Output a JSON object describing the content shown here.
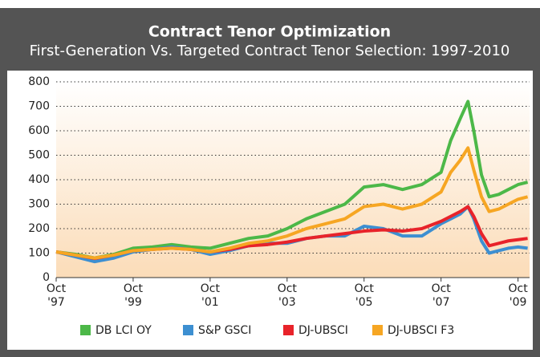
{
  "chart_data": {
    "type": "line",
    "title": "Contract Tenor Optimization",
    "subtitle": "First-Generation Vs. Targeted Contract Tenor Selection: 1997-2010",
    "x": [
      1997.75,
      1998.25,
      1998.75,
      1999.25,
      1999.75,
      2000.25,
      2000.75,
      2001.25,
      2001.75,
      2002.25,
      2002.75,
      2003.25,
      2003.75,
      2004.25,
      2004.75,
      2005.25,
      2005.75,
      2006.25,
      2006.75,
      2007.25,
      2007.75,
      2008.0,
      2008.25,
      2008.45,
      2008.6,
      2008.8,
      2009.0,
      2009.25,
      2009.5,
      2009.75,
      2010.0
    ],
    "series": [
      {
        "name": "DB LCI OY",
        "color": "#4cb848",
        "values": [
          105,
          95,
          80,
          95,
          120,
          125,
          135,
          125,
          120,
          140,
          160,
          170,
          200,
          240,
          270,
          300,
          370,
          380,
          360,
          380,
          430,
          560,
          650,
          720,
          600,
          420,
          330,
          340,
          360,
          380,
          390
        ]
      },
      {
        "name": "S&P GSCI",
        "color": "#3d8fd1",
        "values": [
          105,
          85,
          65,
          80,
          105,
          115,
          125,
          115,
          95,
          110,
          130,
          140,
          140,
          160,
          170,
          170,
          210,
          200,
          170,
          170,
          220,
          240,
          260,
          290,
          240,
          150,
          100,
          110,
          120,
          125,
          120
        ]
      },
      {
        "name": "DJ-UBSCI",
        "color": "#e8232a",
        "values": [
          105,
          92,
          78,
          92,
          110,
          115,
          120,
          115,
          105,
          115,
          130,
          135,
          145,
          160,
          170,
          180,
          190,
          195,
          190,
          200,
          230,
          250,
          270,
          290,
          250,
          180,
          130,
          140,
          150,
          155,
          160
        ]
      },
      {
        "name": "DJ-UBSCI F3",
        "color": "#f6a623",
        "values": [
          105,
          92,
          80,
          92,
          110,
          115,
          120,
          115,
          105,
          120,
          140,
          150,
          170,
          200,
          220,
          240,
          290,
          300,
          280,
          300,
          350,
          430,
          480,
          530,
          440,
          330,
          270,
          280,
          300,
          320,
          330
        ]
      }
    ],
    "xlim": [
      1997.75,
      2010.05
    ],
    "xticks": [
      {
        "value": 1997.75,
        "label": [
          "Oct",
          "'97"
        ]
      },
      {
        "value": 1999.75,
        "label": [
          "Oct",
          "'99"
        ]
      },
      {
        "value": 2001.75,
        "label": [
          "Oct",
          "'01"
        ]
      },
      {
        "value": 2003.75,
        "label": [
          "Oct",
          "'03"
        ]
      },
      {
        "value": 2005.75,
        "label": [
          "Oct",
          "'05"
        ]
      },
      {
        "value": 2007.75,
        "label": [
          "Oct",
          "'07"
        ]
      },
      {
        "value": 2009.75,
        "label": [
          "Oct",
          "'09"
        ]
      }
    ],
    "ylim": [
      0,
      800
    ],
    "yticks": [
      0,
      100,
      200,
      300,
      400,
      500,
      600,
      700,
      800
    ],
    "grid": true,
    "legend": "bottom"
  }
}
